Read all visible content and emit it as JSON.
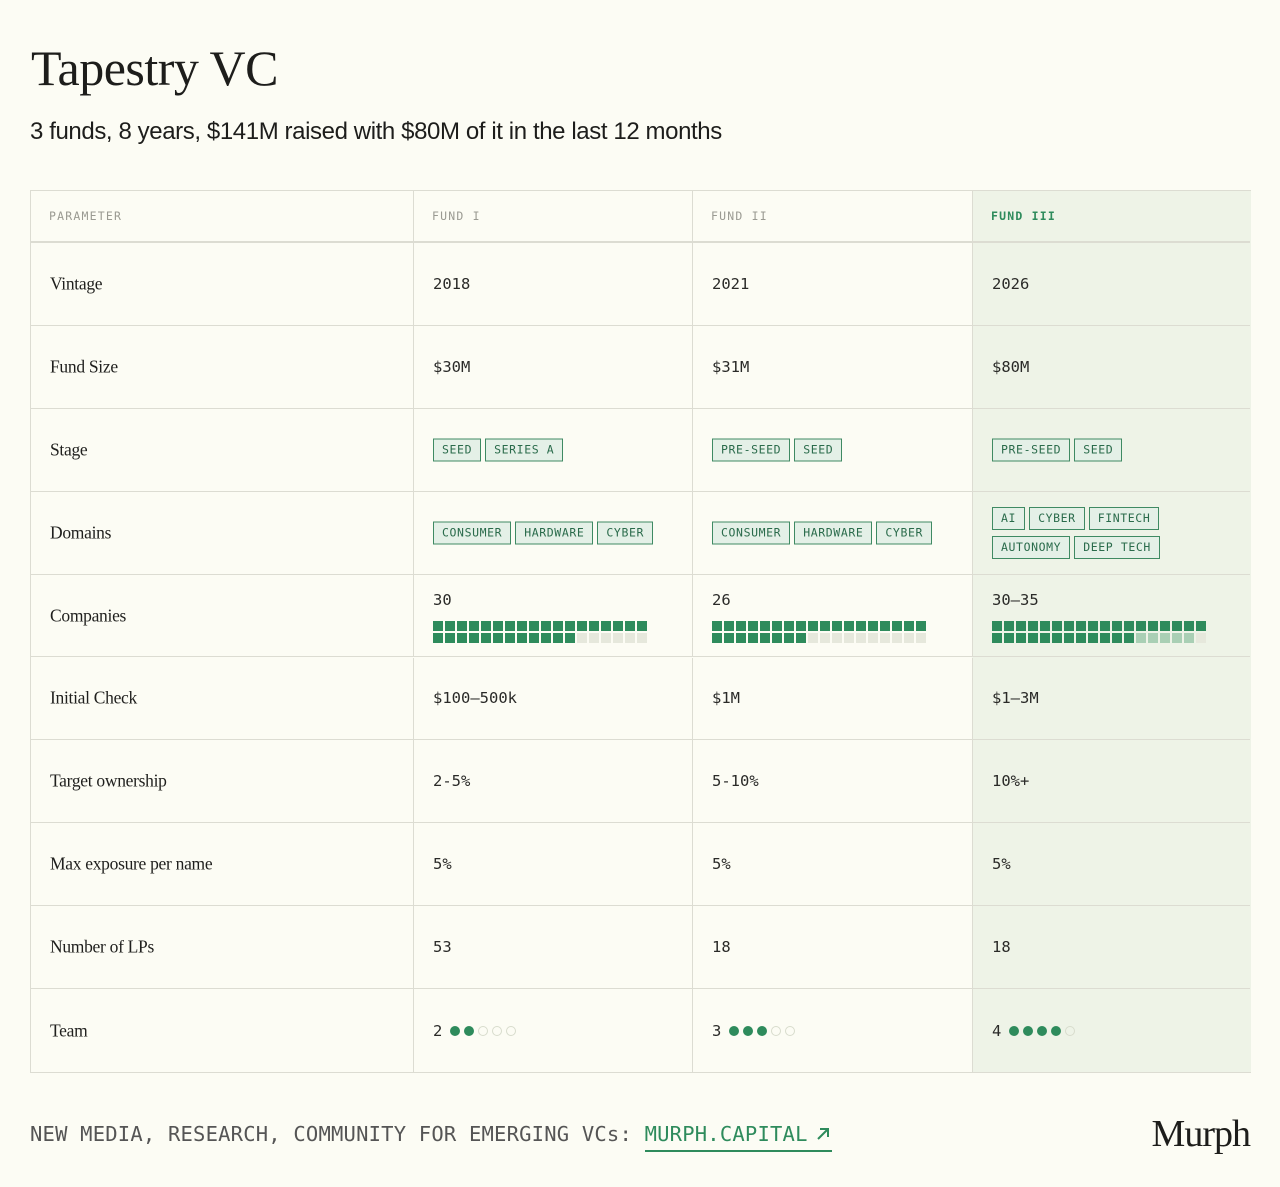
{
  "title": "Tapestry VC",
  "subtitle": "3 funds, 8 years, $141M raised with $80M of it in the last 12 months",
  "header": {
    "parameter": "PARAMETER",
    "funds": [
      "FUND I",
      "FUND II",
      "FUND III"
    ]
  },
  "rows": {
    "vintage": {
      "label": "Vintage",
      "values": [
        "2018",
        "2021",
        "2026"
      ]
    },
    "fund_size": {
      "label": "Fund Size",
      "values": [
        "$30M",
        "$31M",
        "$80M"
      ]
    },
    "stage": {
      "label": "Stage",
      "values": [
        [
          "SEED",
          "SERIES A"
        ],
        [
          "PRE-SEED",
          "SEED"
        ],
        [
          "PRE-SEED",
          "SEED"
        ]
      ]
    },
    "domains": {
      "label": "Domains",
      "values": [
        [
          "CONSUMER",
          "HARDWARE",
          "CYBER"
        ],
        [
          "CONSUMER",
          "HARDWARE",
          "CYBER"
        ],
        [
          "AI",
          "CYBER",
          "FINTECH",
          "AUTONOMY",
          "DEEP TECH"
        ]
      ]
    },
    "companies": {
      "label": "Companies",
      "values": [
        "30",
        "26",
        "30–35"
      ],
      "filled": [
        30,
        26,
        30
      ],
      "range_extra": [
        0,
        0,
        5
      ],
      "total_squares": 36
    },
    "initial_check": {
      "label": "Initial Check",
      "values": [
        "$100–500k",
        "$1M",
        "$1–3M"
      ]
    },
    "target_ownership": {
      "label": "Target ownership",
      "values": [
        "2-5%",
        "5-10%",
        "10%+"
      ]
    },
    "max_exposure": {
      "label": "Max exposure per name",
      "values": [
        "5%",
        "5%",
        "5%"
      ]
    },
    "lps": {
      "label": "Number of LPs",
      "values": [
        "53",
        "18",
        "18"
      ]
    },
    "team": {
      "label": "Team",
      "values": [
        "2",
        "3",
        "4"
      ],
      "filled": [
        2,
        3,
        4
      ],
      "total_dots": 5
    }
  },
  "footer": {
    "text": "NEW MEDIA, RESEARCH, COMMUNITY FOR EMERGING VCs:",
    "link": "MURPH.CAPITAL"
  },
  "logo": "Murph",
  "colors": {
    "accent": "#2e8b5c",
    "background": "#fcfcf4",
    "highlight_column": "#eef3e7"
  }
}
